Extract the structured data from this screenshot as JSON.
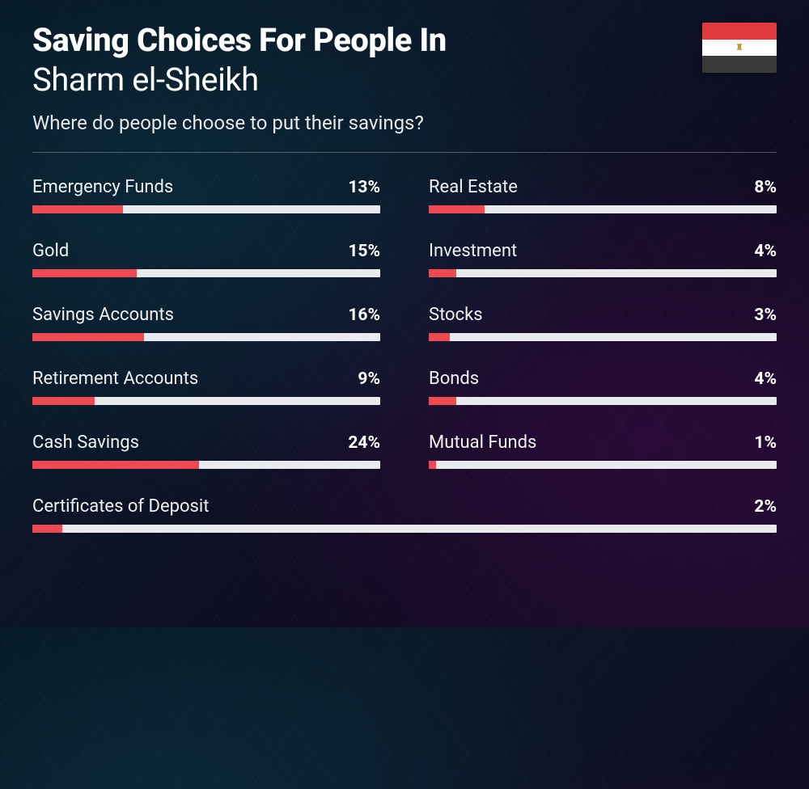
{
  "header": {
    "title_line1": "Saving Choices For People In",
    "title_line2": "Sharm el-Sheikh",
    "subtitle": "Where do people choose to put their savings?"
  },
  "flag": {
    "stripes": [
      "#e03a3e",
      "#ffffff",
      "#3b3b3b"
    ],
    "emblem_color": "#c09b30"
  },
  "chart": {
    "type": "bar",
    "bar_color": "#ef4951",
    "track_color": "#e8eaed",
    "bar_scale_max": 50,
    "label_fontsize": 22,
    "value_fontsize": 21,
    "items": [
      {
        "label": "Emergency Funds",
        "value": 13,
        "display": "13%",
        "col": 1
      },
      {
        "label": "Real Estate",
        "value": 8,
        "display": "8%",
        "col": 2
      },
      {
        "label": "Gold",
        "value": 15,
        "display": "15%",
        "col": 1
      },
      {
        "label": "Investment",
        "value": 4,
        "display": "4%",
        "col": 2
      },
      {
        "label": "Savings Accounts",
        "value": 16,
        "display": "16%",
        "col": 1
      },
      {
        "label": "Stocks",
        "value": 3,
        "display": "3%",
        "col": 2
      },
      {
        "label": "Retirement Accounts",
        "value": 9,
        "display": "9%",
        "col": 1
      },
      {
        "label": "Bonds",
        "value": 4,
        "display": "4%",
        "col": 2
      },
      {
        "label": "Cash Savings",
        "value": 24,
        "display": "24%",
        "col": 1
      },
      {
        "label": "Mutual Funds",
        "value": 1,
        "display": "1%",
        "col": 2
      },
      {
        "label": "Certificates of Deposit",
        "value": 2,
        "display": "2%",
        "full": true
      }
    ]
  },
  "colors": {
    "text_primary": "#ffffff",
    "text_secondary": "#e8e8e8",
    "divider": "rgba(255,255,255,0.28)"
  }
}
